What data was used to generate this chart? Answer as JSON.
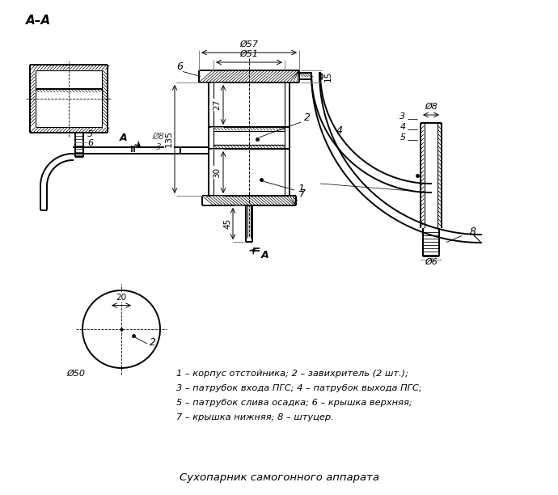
{
  "title": "Сухопарник самогонного аппарата",
  "legend_lines": [
    "1 – корпус отстойника; 2 – завихритель (2 шт.);",
    "3 – патрубок входа ПГС; 4 – патрубок выхода ПГС;",
    "5 – патрубок слива осадка; 6 – крышка верхняя;",
    "7 – крышка нижняя; 8 – штуцер."
  ],
  "background_color": "#ffffff"
}
